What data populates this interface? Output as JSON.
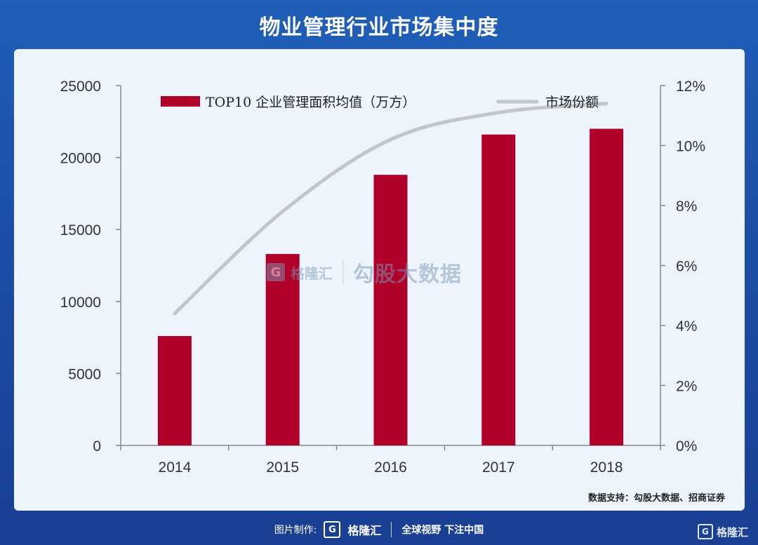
{
  "title": "物业管理行业市场集中度",
  "source": "数据支持：勾股大数据、招商证券",
  "watermark": {
    "logo": "G",
    "brand": "格隆汇",
    "text": "勾股大数据"
  },
  "footer": {
    "prefix": "图片制作:",
    "logo": "G",
    "brand": "格隆汇",
    "slogan": "全球视野 下注中国"
  },
  "corner": {
    "logo": "G",
    "brand": "格隆汇"
  },
  "colors": {
    "bar": "#b0002a",
    "line": "#c2c5c9",
    "axis": "#888888"
  },
  "chart_data": {
    "type": "bar",
    "categories": [
      "2014",
      "2015",
      "2016",
      "2017",
      "2018"
    ],
    "series": [
      {
        "name": "TOP10 企业管理面积均值（万方）",
        "type": "bar",
        "axis": "left",
        "values": [
          7600,
          13300,
          18800,
          21600,
          22000
        ]
      },
      {
        "name": "市场份额",
        "type": "line",
        "axis": "right",
        "values": [
          4.4,
          7.8,
          10.2,
          11.1,
          11.4
        ]
      }
    ],
    "y_left": {
      "min": 0,
      "max": 25000,
      "ticks": [
        "0",
        "5000",
        "10000",
        "15000",
        "20000",
        "25000"
      ]
    },
    "y_right": {
      "min": 0,
      "max": 12,
      "ticks": [
        "0%",
        "2%",
        "4%",
        "6%",
        "8%",
        "10%",
        "12%"
      ]
    },
    "legend_position": "top",
    "grid": false
  }
}
